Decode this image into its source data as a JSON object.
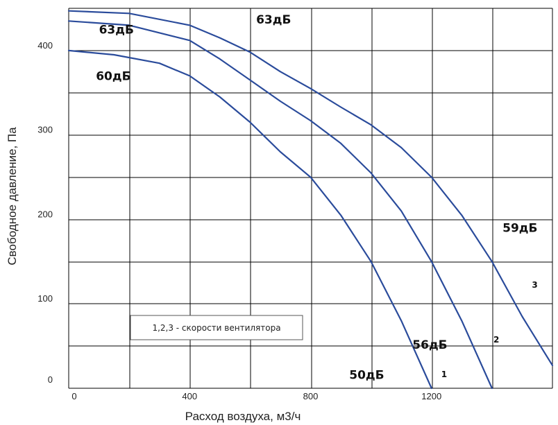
{
  "chart_data": {
    "type": "line",
    "xlabel": "Расход воздуха, м3/ч",
    "ylabel": "Свободное давление, Па",
    "xlim": [
      0,
      1600
    ],
    "ylim": [
      0,
      450
    ],
    "x_ticks": [
      0,
      400,
      800,
      1200
    ],
    "y_ticks": [
      0,
      100,
      200,
      300,
      400
    ],
    "grid": true,
    "line_color": "#2a4b9b",
    "series": [
      {
        "name": "1",
        "points": [
          [
            0,
            400
          ],
          [
            150,
            395
          ],
          [
            300,
            385
          ],
          [
            400,
            370
          ],
          [
            500,
            345
          ],
          [
            600,
            315
          ],
          [
            700,
            280
          ],
          [
            800,
            250
          ],
          [
            900,
            205
          ],
          [
            1000,
            150
          ],
          [
            1100,
            80
          ],
          [
            1200,
            0
          ]
        ]
      },
      {
        "name": "2",
        "points": [
          [
            0,
            435
          ],
          [
            200,
            430
          ],
          [
            400,
            412
          ],
          [
            500,
            390
          ],
          [
            600,
            365
          ],
          [
            700,
            340
          ],
          [
            800,
            317
          ],
          [
            900,
            290
          ],
          [
            1000,
            255
          ],
          [
            1100,
            210
          ],
          [
            1200,
            150
          ],
          [
            1300,
            80
          ],
          [
            1400,
            0
          ]
        ]
      },
      {
        "name": "3",
        "points": [
          [
            0,
            447
          ],
          [
            200,
            444
          ],
          [
            400,
            430
          ],
          [
            500,
            415
          ],
          [
            600,
            398
          ],
          [
            700,
            375
          ],
          [
            800,
            355
          ],
          [
            900,
            333
          ],
          [
            1000,
            312
          ],
          [
            1100,
            285
          ],
          [
            1200,
            250
          ],
          [
            1300,
            205
          ],
          [
            1400,
            150
          ],
          [
            1500,
            85
          ],
          [
            1600,
            27
          ]
        ]
      }
    ],
    "annotations": [
      {
        "text": "63дБ",
        "x": 100,
        "y": 420
      },
      {
        "text": "63дБ",
        "x": 620,
        "y": 432
      },
      {
        "text": "60дБ",
        "x": 90,
        "y": 365
      },
      {
        "text": "59дБ",
        "x": 1435,
        "y": 185
      },
      {
        "text": "56дБ",
        "x": 1137,
        "y": 47
      },
      {
        "text": "50дБ",
        "x": 928,
        "y": 11
      }
    ],
    "speed_labels": [
      {
        "text": "1",
        "x": 1232,
        "y": 13
      },
      {
        "text": "2",
        "x": 1405,
        "y": 54
      },
      {
        "text": "3",
        "x": 1532,
        "y": 119
      }
    ],
    "note": "1,2,3 - скорости вентилятора"
  }
}
